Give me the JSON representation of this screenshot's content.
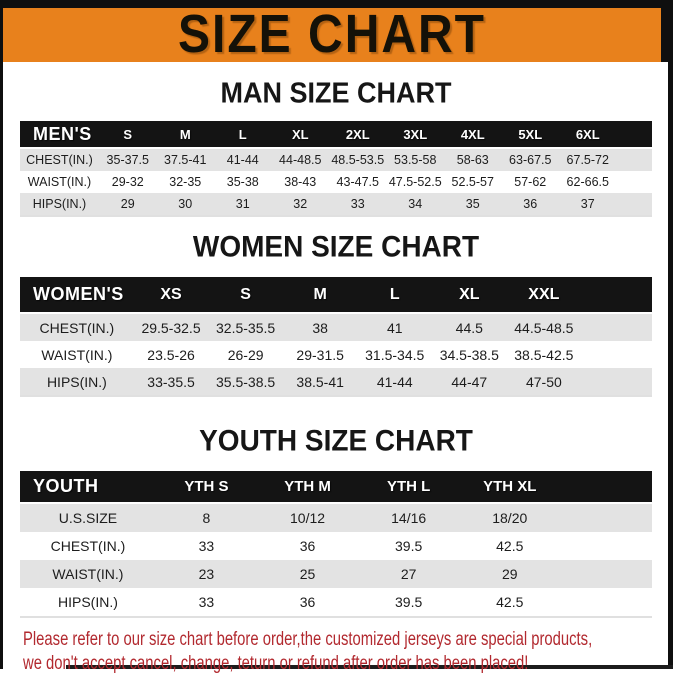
{
  "title": "SIZE CHART",
  "sections": [
    {
      "heading": "MAN SIZE CHART",
      "table": {
        "header": [
          "MEN'S",
          "S",
          "M",
          "L",
          "XL",
          "2XL",
          "3XL",
          "4XL",
          "5XL",
          "6XL"
        ],
        "rows": [
          [
            "CHEST(IN.)",
            "35-37.5",
            "37.5-41",
            "41-44",
            "44-48.5",
            "48.5-53.5",
            "53.5-58",
            "58-63",
            "63-67.5",
            "67.5-72"
          ],
          [
            "WAIST(IN.)",
            "29-32",
            "32-35",
            "35-38",
            "38-43",
            "43-47.5",
            "47.5-52.5",
            "52.5-57",
            "57-62",
            "62-66.5"
          ],
          [
            "HIPS(IN.)",
            "29",
            "30",
            "31",
            "32",
            "33",
            "34",
            "35",
            "36",
            "37"
          ]
        ]
      }
    },
    {
      "heading": "WOMEN SIZE CHART",
      "table": {
        "header": [
          "WOMEN'S",
          "XS",
          "S",
          "M",
          "L",
          "XL",
          "XXL"
        ],
        "rows": [
          [
            "CHEST(IN.)",
            "29.5-32.5",
            "32.5-35.5",
            "38",
            "41",
            "44.5",
            "44.5-48.5"
          ],
          [
            "WAIST(IN.)",
            "23.5-26",
            "26-29",
            "29-31.5",
            "31.5-34.5",
            "34.5-38.5",
            "38.5-42.5"
          ],
          [
            "HIPS(IN.)",
            "33-35.5",
            "35.5-38.5",
            "38.5-41",
            "41-44",
            "44-47",
            "47-50"
          ]
        ]
      }
    },
    {
      "heading": "YOUTH SIZE CHART",
      "table": {
        "header": [
          "YOUTH",
          "YTH S",
          "YTH M",
          "YTH L",
          "YTH XL"
        ],
        "rows": [
          [
            "U.S.SIZE",
            "8",
            "10/12",
            "14/16",
            "18/20"
          ],
          [
            "CHEST(IN.)",
            "33",
            "36",
            "39.5",
            "42.5"
          ],
          [
            "WAIST(IN.)",
            "23",
            "25",
            "27",
            "29"
          ],
          [
            "HIPS(IN.)",
            "33",
            "36",
            "39.5",
            "42.5"
          ]
        ]
      }
    }
  ],
  "footer": {
    "line1": "Please refer to our size chart before order,the customized jerseys are special products,",
    "line2": "we don't accept cancel, change, teturn or refund after order has been placed!"
  },
  "colors": {
    "banner_orange": "#e8811c",
    "header_black": "#141414",
    "stripe_gray": "#e3e3e3",
    "footer_red": "#b2292f"
  }
}
